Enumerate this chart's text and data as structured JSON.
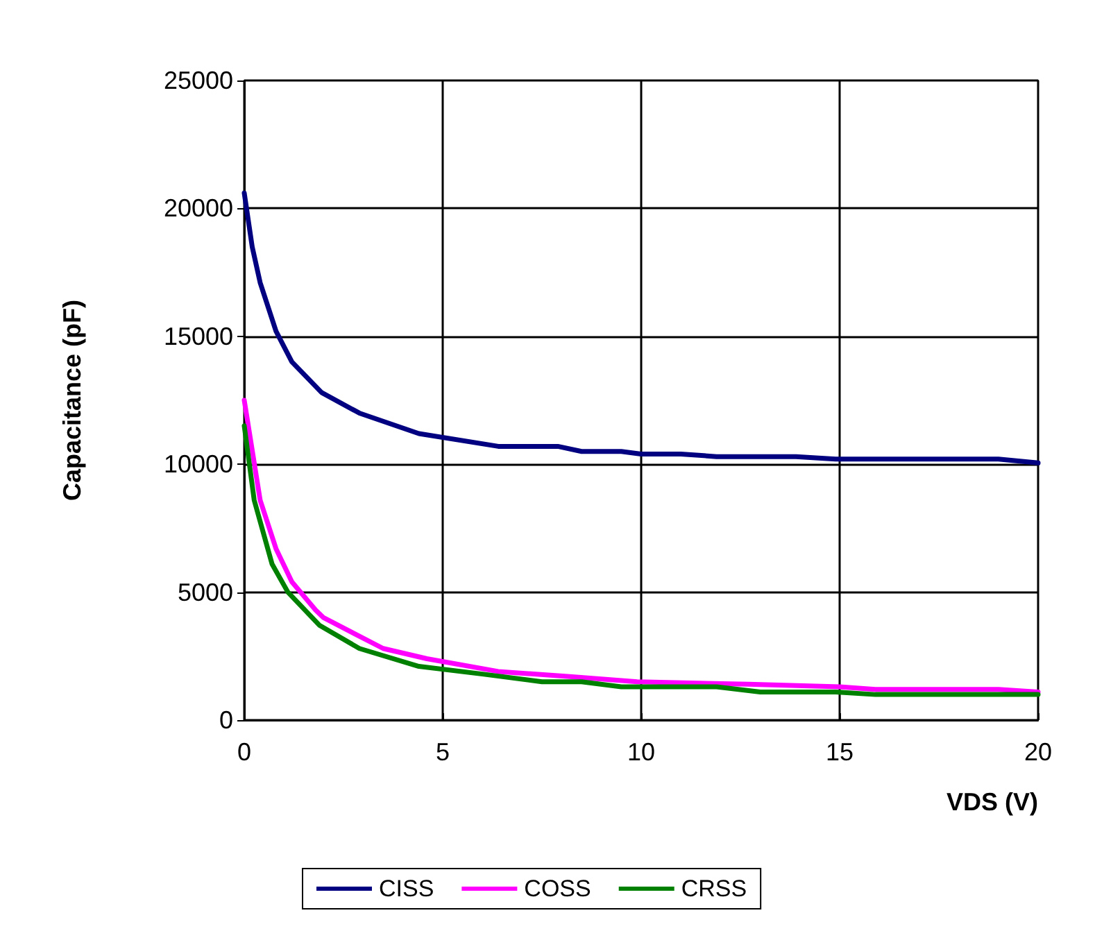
{
  "chart_data": {
    "type": "line",
    "xlabel": "VDS (V)",
    "ylabel": "Capacitance (pF)",
    "xlim": [
      0,
      20
    ],
    "xticks": [
      0,
      5,
      10,
      15,
      20
    ],
    "ylim": [
      0,
      25000
    ],
    "yticks": [
      0,
      5000,
      10000,
      15000,
      20000,
      25000
    ],
    "grid": true,
    "legend": "bottom",
    "marker": "none",
    "line_style": "solid",
    "series": [
      {
        "name": "CISS",
        "color": "#000080",
        "x": [
          0,
          0.2,
          0.4,
          0.8,
          1.2,
          1.95,
          2.9,
          4.4,
          6.4,
          7.9,
          8.5,
          9.5,
          10,
          11,
          11.9,
          13.9,
          14.9,
          19,
          20
        ],
        "values": [
          20600,
          18500,
          17100,
          15200,
          14000,
          12800,
          12000,
          11200,
          10700,
          10700,
          10500,
          10500,
          10400,
          10400,
          10300,
          10300,
          10200,
          10200,
          10050
        ]
      },
      {
        "name": "COSS",
        "color": "#ff00ff",
        "x": [
          0,
          0.4,
          0.8,
          1.2,
          1.8,
          2,
          3.5,
          4.6,
          6.4,
          8.2,
          9.9,
          12.7,
          15,
          15.9,
          19,
          20
        ],
        "values": [
          12500,
          8600,
          6700,
          5400,
          4300,
          4000,
          2800,
          2400,
          1900,
          1700,
          1500,
          1400,
          1300,
          1200,
          1200,
          1100
        ]
      },
      {
        "name": "CRSS",
        "color": "#008000",
        "x": [
          0,
          0.25,
          0.7,
          1.1,
          1.9,
          2.9,
          4.4,
          6,
          7.5,
          8.5,
          9.5,
          10,
          11.9,
          13,
          14.9,
          15.9,
          20
        ],
        "values": [
          11500,
          8600,
          6100,
          5000,
          3700,
          2800,
          2100,
          1800,
          1500,
          1500,
          1300,
          1300,
          1300,
          1100,
          1100,
          1000,
          1000
        ]
      }
    ]
  }
}
